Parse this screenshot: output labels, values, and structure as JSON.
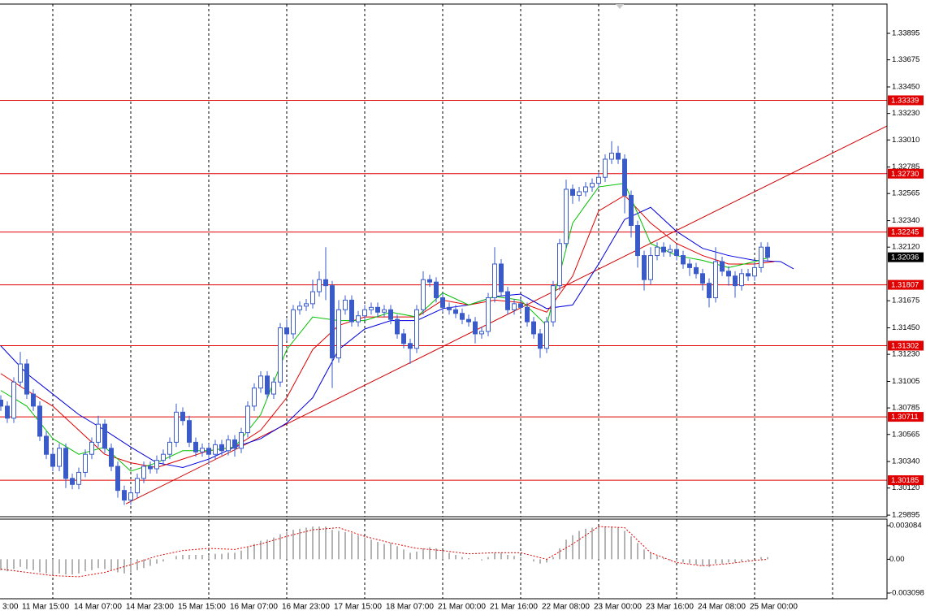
{
  "chart_data": {
    "type": "candlestick",
    "ylim": [
      1.29882,
      1.34138
    ],
    "yticks": [
      1.33895,
      1.33675,
      {
        "value": 1.3345,
        "label": "1.33450"
      },
      {
        "value": 1.3323,
        "label": "1.33230"
      },
      {
        "value": 1.3301,
        "label": "1.33010"
      },
      1.32785,
      1.32565,
      {
        "value": 1.3234,
        "label": "1.32340"
      },
      {
        "value": 1.3212,
        "label": "1.32120"
      },
      1.31675,
      {
        "value": 1.3145,
        "label": "1.31450"
      },
      {
        "value": 1.3123,
        "label": "1.31230"
      },
      1.31005,
      1.30785,
      1.30565,
      {
        "value": 1.3034,
        "label": "1.30340"
      },
      {
        "value": 1.3012,
        "label": "1.30120"
      },
      1.29895
    ],
    "categories": [
      "3:00",
      null,
      null,
      "11 Mar 15:00",
      null,
      null,
      null,
      null,
      null,
      null,
      null,
      "14 Mar 07:00",
      null,
      null,
      null,
      null,
      null,
      null,
      null,
      "14 Mar 23:00",
      null,
      null,
      null,
      null,
      null,
      null,
      null,
      "15 Mar 15:00",
      null,
      null,
      null,
      null,
      null,
      null,
      null,
      "16 Mar 07:00",
      null,
      null,
      null,
      null,
      null,
      null,
      null,
      "16 Mar 23:00",
      null,
      null,
      null,
      null,
      null,
      null,
      null,
      "17 Mar 15:00",
      null,
      null,
      null,
      null,
      null,
      null,
      null,
      "18 Mar 07:00",
      null,
      null,
      null,
      null,
      null,
      null,
      null,
      "21 Mar 00:00",
      null,
      null,
      null,
      null,
      null,
      null,
      null,
      "21 Mar 16:00",
      null,
      null,
      null,
      null,
      null,
      null,
      null,
      "22 Mar 08:00",
      null,
      null,
      null,
      null,
      null,
      null,
      null,
      "23 Mar 00:00",
      null,
      null,
      null,
      null,
      null,
      null,
      null,
      "23 Mar 16:00",
      null,
      null,
      null,
      null,
      null,
      null,
      null,
      "24 Mar 08:00",
      null,
      null,
      null,
      null,
      null,
      null,
      null,
      "25 Mar 00:00",
      null,
      null,
      null
    ],
    "candles": {
      "color": "#3a5bc7",
      "up_fill": "#ffffff",
      "down_fill": "#3a5bc7",
      "open": [
        1.3085,
        1.308,
        1.307,
        1.31,
        1.3115,
        1.309,
        1.308,
        1.3055,
        1.304,
        1.303,
        1.3045,
        1.302,
        1.3015,
        1.3025,
        1.304,
        1.305,
        1.3065,
        1.3045,
        1.303,
        1.301,
        1.3002,
        1.3008,
        1.302,
        1.303,
        1.3028,
        1.3035,
        1.304,
        1.305,
        1.3075,
        1.3068,
        1.305,
        1.3042,
        1.3045,
        1.304,
        1.3048,
        1.3043,
        1.3052,
        1.3045,
        1.3058,
        1.308,
        1.3095,
        1.3105,
        1.309,
        1.31,
        1.3145,
        1.314,
        1.316,
        1.3163,
        1.3165,
        1.3175,
        1.3185,
        1.318,
        1.312,
        1.316,
        1.3168,
        1.315,
        1.3155,
        1.316,
        1.3162,
        1.3158,
        1.316,
        1.3152,
        1.314,
        1.3132,
        1.3128,
        1.316,
        1.3185,
        1.3183,
        1.317,
        1.3162,
        1.316,
        1.3157,
        1.3152,
        1.315,
        1.314,
        1.3142,
        1.317,
        1.3198,
        1.3175,
        1.316,
        1.3165,
        1.3162,
        1.315,
        1.314,
        1.3128,
        1.315,
        1.318,
        1.3215,
        1.326,
        1.3255,
        1.3258,
        1.3262,
        1.3265,
        1.327,
        1.3285,
        1.329,
        1.3285,
        1.3255,
        1.323,
        1.3205,
        1.3185,
        1.3205,
        1.3212,
        1.3208,
        1.321,
        1.3205,
        1.3198,
        1.3195,
        1.319,
        1.3182,
        1.317,
        1.32,
        1.3192,
        1.3188,
        1.318,
        1.319,
        1.3188,
        1.3195,
        1.3212
      ],
      "high": [
        1.3089,
        1.3084,
        1.3104,
        1.3125,
        1.3119,
        1.3094,
        1.3084,
        1.3059,
        1.3044,
        1.3049,
        1.3049,
        1.3024,
        1.3029,
        1.3044,
        1.3054,
        1.3072,
        1.3069,
        1.3049,
        1.3034,
        1.3014,
        1.3012,
        1.3024,
        1.3034,
        1.3034,
        1.3039,
        1.3044,
        1.3054,
        1.3082,
        1.3079,
        1.3072,
        1.3054,
        1.3049,
        1.3049,
        1.3052,
        1.3052,
        1.3056,
        1.3056,
        1.3062,
        1.3084,
        1.3099,
        1.3109,
        1.3109,
        1.3104,
        1.3149,
        1.3152,
        1.3164,
        1.3167,
        1.3169,
        1.3185,
        1.3192,
        1.3212,
        1.3184,
        1.3168,
        1.3172,
        1.3172,
        1.3159,
        1.3164,
        1.3166,
        1.3166,
        1.3164,
        1.3164,
        1.3156,
        1.3144,
        1.3136,
        1.3164,
        1.3192,
        1.3189,
        1.3187,
        1.3174,
        1.3166,
        1.3164,
        1.3161,
        1.3156,
        1.3154,
        1.3146,
        1.3174,
        1.3212,
        1.3202,
        1.3179,
        1.3169,
        1.3169,
        1.3166,
        1.3154,
        1.3144,
        1.3154,
        1.3184,
        1.3219,
        1.3268,
        1.3264,
        1.3262,
        1.3266,
        1.3269,
        1.3274,
        1.3289,
        1.33,
        1.3296,
        1.3289,
        1.3259,
        1.3234,
        1.3209,
        1.3212,
        1.3216,
        1.3216,
        1.3214,
        1.3214,
        1.3209,
        1.3202,
        1.3199,
        1.3194,
        1.3186,
        1.3212,
        1.3204,
        1.3196,
        1.3192,
        1.3194,
        1.3194,
        1.3199,
        1.3216,
        1.3216
      ],
      "low": [
        1.3076,
        1.3066,
        1.3066,
        1.3096,
        1.3086,
        1.3076,
        1.3051,
        1.3036,
        1.3026,
        1.3026,
        1.3012,
        1.3011,
        1.3011,
        1.3021,
        1.3036,
        1.3046,
        1.3041,
        1.3026,
        1.3004,
        1.2998,
        1.2998,
        1.3004,
        1.3016,
        1.3024,
        1.3024,
        1.3031,
        1.3036,
        1.3046,
        1.3064,
        1.3046,
        1.3038,
        1.3038,
        1.3032,
        1.3036,
        1.3039,
        1.3039,
        1.3038,
        1.3041,
        1.3054,
        1.3076,
        1.3091,
        1.3086,
        1.3086,
        1.3096,
        1.3134,
        1.3136,
        1.3156,
        1.3159,
        1.3161,
        1.3171,
        1.3168,
        1.3095,
        1.3116,
        1.3156,
        1.3146,
        1.3146,
        1.3151,
        1.3156,
        1.3154,
        1.3154,
        1.3148,
        1.3136,
        1.3128,
        1.3115,
        1.3124,
        1.3156,
        1.3179,
        1.3166,
        1.3158,
        1.3156,
        1.3153,
        1.3148,
        1.3146,
        1.3132,
        1.3136,
        1.3138,
        1.3166,
        1.3171,
        1.3156,
        1.3156,
        1.3158,
        1.3146,
        1.3136,
        1.312,
        1.3124,
        1.3146,
        1.3176,
        1.3211,
        1.3248,
        1.325,
        1.3254,
        1.3258,
        1.3261,
        1.3266,
        1.3281,
        1.3281,
        1.324,
        1.322,
        1.3195,
        1.3176,
        1.3181,
        1.3201,
        1.3204,
        1.3204,
        1.3201,
        1.3194,
        1.3188,
        1.3186,
        1.3176,
        1.3162,
        1.3166,
        1.3188,
        1.318,
        1.317,
        1.3176,
        1.3184,
        1.3184,
        1.3191,
        1.32
      ],
      "close": [
        1.308,
        1.307,
        1.31,
        1.3115,
        1.309,
        1.308,
        1.3055,
        1.304,
        1.303,
        1.3045,
        1.302,
        1.3015,
        1.3025,
        1.304,
        1.305,
        1.3065,
        1.3045,
        1.303,
        1.301,
        1.3002,
        1.3008,
        1.302,
        1.303,
        1.3028,
        1.3035,
        1.304,
        1.305,
        1.3075,
        1.3068,
        1.305,
        1.3042,
        1.3045,
        1.304,
        1.3048,
        1.3043,
        1.3052,
        1.3045,
        1.3058,
        1.308,
        1.3095,
        1.3105,
        1.309,
        1.31,
        1.3145,
        1.314,
        1.316,
        1.3163,
        1.3165,
        1.3175,
        1.3185,
        1.318,
        1.312,
        1.316,
        1.3168,
        1.315,
        1.3155,
        1.316,
        1.3162,
        1.3158,
        1.316,
        1.3152,
        1.314,
        1.3132,
        1.3128,
        1.316,
        1.3185,
        1.3183,
        1.317,
        1.3162,
        1.316,
        1.3157,
        1.3152,
        1.315,
        1.314,
        1.3142,
        1.317,
        1.3198,
        1.3175,
        1.316,
        1.3165,
        1.3162,
        1.315,
        1.314,
        1.3128,
        1.315,
        1.318,
        1.3215,
        1.326,
        1.3255,
        1.3258,
        1.3262,
        1.3265,
        1.327,
        1.3285,
        1.329,
        1.3285,
        1.3255,
        1.323,
        1.3205,
        1.3185,
        1.3205,
        1.3212,
        1.3208,
        1.321,
        1.3205,
        1.3198,
        1.3195,
        1.319,
        1.3182,
        1.317,
        1.32,
        1.3192,
        1.3188,
        1.318,
        1.319,
        1.3188,
        1.3195,
        1.3212,
        1.32036
      ]
    },
    "lines": [
      {
        "color": "#0000e0",
        "x": [
          0,
          4,
          8,
          12,
          16,
          20,
          24,
          28,
          32,
          36,
          40,
          44,
          48,
          52,
          56,
          60,
          64,
          68,
          72,
          76,
          80,
          84,
          88,
          92,
          96,
          100,
          104,
          108,
          112,
          116,
          120,
          122
        ],
        "values": [
          1.313,
          1.3107,
          1.309,
          1.3073,
          1.306,
          1.3046,
          1.3033,
          1.3029,
          1.3036,
          1.3046,
          1.3053,
          1.3066,
          1.3087,
          1.3127,
          1.3144,
          1.3151,
          1.3151,
          1.3161,
          1.3164,
          1.3171,
          1.3173,
          1.3161,
          1.3164,
          1.3198,
          1.3235,
          1.3245,
          1.3225,
          1.3211,
          1.3205,
          1.3201,
          1.32,
          1.3194
        ]
      },
      {
        "color": "#e00000",
        "x": [
          0,
          4,
          8,
          12,
          16,
          20,
          24,
          28,
          32,
          36,
          40,
          44,
          48,
          52,
          56,
          60,
          64,
          68,
          72,
          76,
          80,
          84,
          88,
          92,
          96,
          100,
          104,
          108,
          112,
          116,
          119
        ],
        "values": [
          1.3107,
          1.3093,
          1.308,
          1.306,
          1.304,
          1.3033,
          1.3029,
          1.3036,
          1.3043,
          1.3046,
          1.306,
          1.3087,
          1.3127,
          1.3147,
          1.3154,
          1.3154,
          1.3154,
          1.3168,
          1.3164,
          1.3168,
          1.3166,
          1.3158,
          1.3188,
          1.3242,
          1.3255,
          1.3232,
          1.3215,
          1.3205,
          1.3198,
          1.3198,
          1.32
        ]
      },
      {
        "color": "#00c000",
        "x": [
          0,
          4,
          8,
          12,
          16,
          20,
          24,
          28,
          32,
          36,
          40,
          44,
          48,
          52,
          56,
          60,
          64,
          68,
          72,
          76,
          80,
          84,
          88,
          92,
          96,
          100,
          104,
          108,
          112,
          116,
          118
        ],
        "values": [
          1.3093,
          1.308,
          1.3053,
          1.304,
          1.3046,
          1.3026,
          1.3033,
          1.3043,
          1.3043,
          1.3046,
          1.3073,
          1.3127,
          1.3154,
          1.3151,
          1.3151,
          1.3158,
          1.3154,
          1.3174,
          1.3164,
          1.3171,
          1.3168,
          1.3147,
          1.3232,
          1.3262,
          1.3265,
          1.3215,
          1.3205,
          1.3201,
          1.3195,
          1.32,
          1.3203
        ]
      }
    ],
    "trendline": {
      "color": "#d00000",
      "x": [
        19.25,
        136.375
      ],
      "values": [
        1.29989,
        1.33126
      ]
    },
    "level_color": "#e00000",
    "levels": [
      1.33339,
      {
        "value": 1.3273,
        "label": "1.32730"
      },
      1.32245,
      1.31807,
      1.31302,
      1.30711,
      1.30185
    ],
    "macd": {
      "ylim": [
        -0.00362,
        0.00368
      ],
      "yticks": [
        0.003084,
        {
          "value": 0,
          "label": "0.00"
        },
        -0.003098
      ],
      "histogram_color": "#b4b4b4",
      "histogram": [
        -0.001,
        -0.0011,
        -0.0009,
        -0.0007,
        -0.0009,
        -0.001,
        -0.0012,
        -0.0013,
        -0.0014,
        -0.0013,
        -0.0014,
        -0.0014,
        -0.0013,
        -0.0011,
        -0.001,
        -0.0008,
        -0.0009,
        -0.001,
        -0.0012,
        -0.0013,
        -0.0012,
        -0.001,
        -0.0008,
        -0.0006,
        -0.0004,
        -0.0002,
        0.0,
        0.0003,
        0.0004,
        0.0004,
        0.0004,
        0.0004,
        0.0004,
        0.0005,
        0.0005,
        0.0006,
        0.0006,
        0.0008,
        0.0011,
        0.0014,
        0.0017,
        0.0018,
        0.002,
        0.0023,
        0.0025,
        0.0027,
        0.0028,
        0.0029,
        0.003,
        0.003,
        0.003,
        0.0027,
        0.0026,
        0.0025,
        0.0024,
        0.0022,
        0.002,
        0.0018,
        0.0016,
        0.0014,
        0.0015,
        0.0012,
        0.0009,
        0.0006,
        0.0007,
        0.001,
        0.0011,
        0.001,
        0.0008,
        0.0006,
        0.0004,
        0.0002,
        0.0001,
        0.0,
        -0.0001,
        0.0002,
        0.0006,
        0.0006,
        0.0004,
        0.0003,
        0.0002,
        0.0,
        -0.0002,
        -0.0004,
        -0.0003,
        0.0002,
        0.001,
        0.0018,
        0.0022,
        0.0026,
        0.0028,
        0.0029,
        0.003,
        0.003,
        0.003,
        0.0029,
        0.0026,
        0.0021,
        0.0015,
        0.0009,
        0.0006,
        0.0003,
        0.0001,
        -0.0001,
        -0.0002,
        -0.0003,
        -0.0004,
        -0.0005,
        -0.0006,
        -0.0007,
        -0.0004,
        -0.0004,
        -0.0003,
        -0.0003,
        -0.0002,
        -0.0001,
        0.0,
        0.0002,
        0.0002
      ],
      "signal": {
        "color": "#e00000",
        "x": [
          0,
          4,
          8,
          12,
          16,
          20,
          24,
          28,
          32,
          36,
          40,
          44,
          48,
          52,
          56,
          60,
          64,
          68,
          72,
          76,
          80,
          84,
          88,
          92,
          96,
          100,
          104,
          108,
          112,
          116,
          118
        ],
        "values": [
          -0.0009,
          -0.0012,
          -0.0015,
          -0.0016,
          -0.0012,
          -0.0005,
          0.0003,
          0.0008,
          0.001,
          0.0009,
          0.0014,
          0.0021,
          0.0027,
          0.0029,
          0.0021,
          0.0015,
          0.001,
          0.0008,
          0.0005,
          0.0006,
          0.0006,
          0.0,
          0.0014,
          0.003,
          0.0029,
          0.0006,
          -0.0003,
          -0.0006,
          -0.0004,
          -0.0001,
          0.0
        ]
      }
    }
  }
}
